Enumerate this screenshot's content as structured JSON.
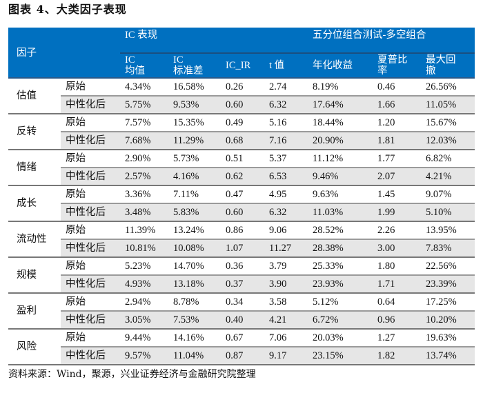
{
  "title": "图表 4、大类因子表现",
  "header": {
    "factor": "因子",
    "ic_group": "IC 表现",
    "portfolio_group": "五分位组合测试-多空组合",
    "columns": [
      [
        "IC",
        "均值"
      ],
      [
        "IC",
        "标准差"
      ],
      [
        "IC_IR"
      ],
      [
        "t 值"
      ],
      [
        "年化收益"
      ],
      [
        "夏普比",
        "率"
      ],
      [
        "最大回",
        "撤"
      ]
    ]
  },
  "rows": [
    {
      "factor": "估值",
      "raw": {
        "label": "原始",
        "values": [
          "4.34%",
          "16.58%",
          "0.26",
          "2.74",
          "8.19%",
          "0.46",
          "26.56%"
        ]
      },
      "neutral": {
        "label": "中性化后",
        "values": [
          "5.75%",
          "9.53%",
          "0.60",
          "6.32",
          "17.64%",
          "1.66",
          "11.05%"
        ]
      }
    },
    {
      "factor": "反转",
      "raw": {
        "label": "原始",
        "values": [
          "7.57%",
          "15.35%",
          "0.49",
          "5.16",
          "18.44%",
          "1.20",
          "15.67%"
        ]
      },
      "neutral": {
        "label": "中性化后",
        "values": [
          "7.68%",
          "11.29%",
          "0.68",
          "7.16",
          "20.90%",
          "1.81",
          "12.03%"
        ]
      }
    },
    {
      "factor": "情绪",
      "raw": {
        "label": "原始",
        "values": [
          "2.90%",
          "5.73%",
          "0.51",
          "5.37",
          "11.12%",
          "1.77",
          "6.82%"
        ]
      },
      "neutral": {
        "label": "中性化后",
        "values": [
          "2.57%",
          "4.16%",
          "0.62",
          "6.53",
          "9.46%",
          "2.07",
          "4.21%"
        ]
      }
    },
    {
      "factor": "成长",
      "raw": {
        "label": "原始",
        "values": [
          "3.36%",
          "7.11%",
          "0.47",
          "4.95",
          "9.63%",
          "1.45",
          "9.07%"
        ]
      },
      "neutral": {
        "label": "中性化后",
        "values": [
          "3.48%",
          "5.83%",
          "0.60",
          "6.32",
          "11.03%",
          "1.99",
          "5.10%"
        ]
      }
    },
    {
      "factor": "流动性",
      "raw": {
        "label": "原始",
        "values": [
          "11.39%",
          "13.24%",
          "0.86",
          "9.06",
          "28.52%",
          "2.26",
          "13.95%"
        ]
      },
      "neutral": {
        "label": "中性化后",
        "values": [
          "10.81%",
          "10.08%",
          "1.07",
          "11.27",
          "28.38%",
          "3.00",
          "7.83%"
        ]
      }
    },
    {
      "factor": "规模",
      "raw": {
        "label": "原始",
        "values": [
          "5.23%",
          "14.70%",
          "0.36",
          "3.79",
          "25.33%",
          "1.80",
          "22.56%"
        ]
      },
      "neutral": {
        "label": "中性化后",
        "values": [
          "4.93%",
          "13.18%",
          "0.37",
          "3.90",
          "23.93%",
          "1.71",
          "23.39%"
        ]
      }
    },
    {
      "factor": "盈利",
      "raw": {
        "label": "原始",
        "values": [
          "2.94%",
          "8.78%",
          "0.34",
          "3.58",
          "5.12%",
          "0.64",
          "17.25%"
        ]
      },
      "neutral": {
        "label": "中性化后",
        "values": [
          "3.05%",
          "7.53%",
          "0.40",
          "4.21",
          "6.72%",
          "0.96",
          "10.20%"
        ]
      }
    },
    {
      "factor": "风险",
      "raw": {
        "label": "原始",
        "values": [
          "9.44%",
          "14.16%",
          "0.67",
          "7.06",
          "20.03%",
          "1.27",
          "19.63%"
        ]
      },
      "neutral": {
        "label": "中性化后",
        "values": [
          "9.57%",
          "11.04%",
          "0.87",
          "9.17",
          "23.15%",
          "1.82",
          "13.74%"
        ]
      }
    }
  ],
  "source": "资料来源：Wind，聚源，兴业证券经济与金融研究院整理",
  "colors": {
    "header_bg": "#0070c0",
    "neutral_row_bg": "#e6e6e6"
  }
}
